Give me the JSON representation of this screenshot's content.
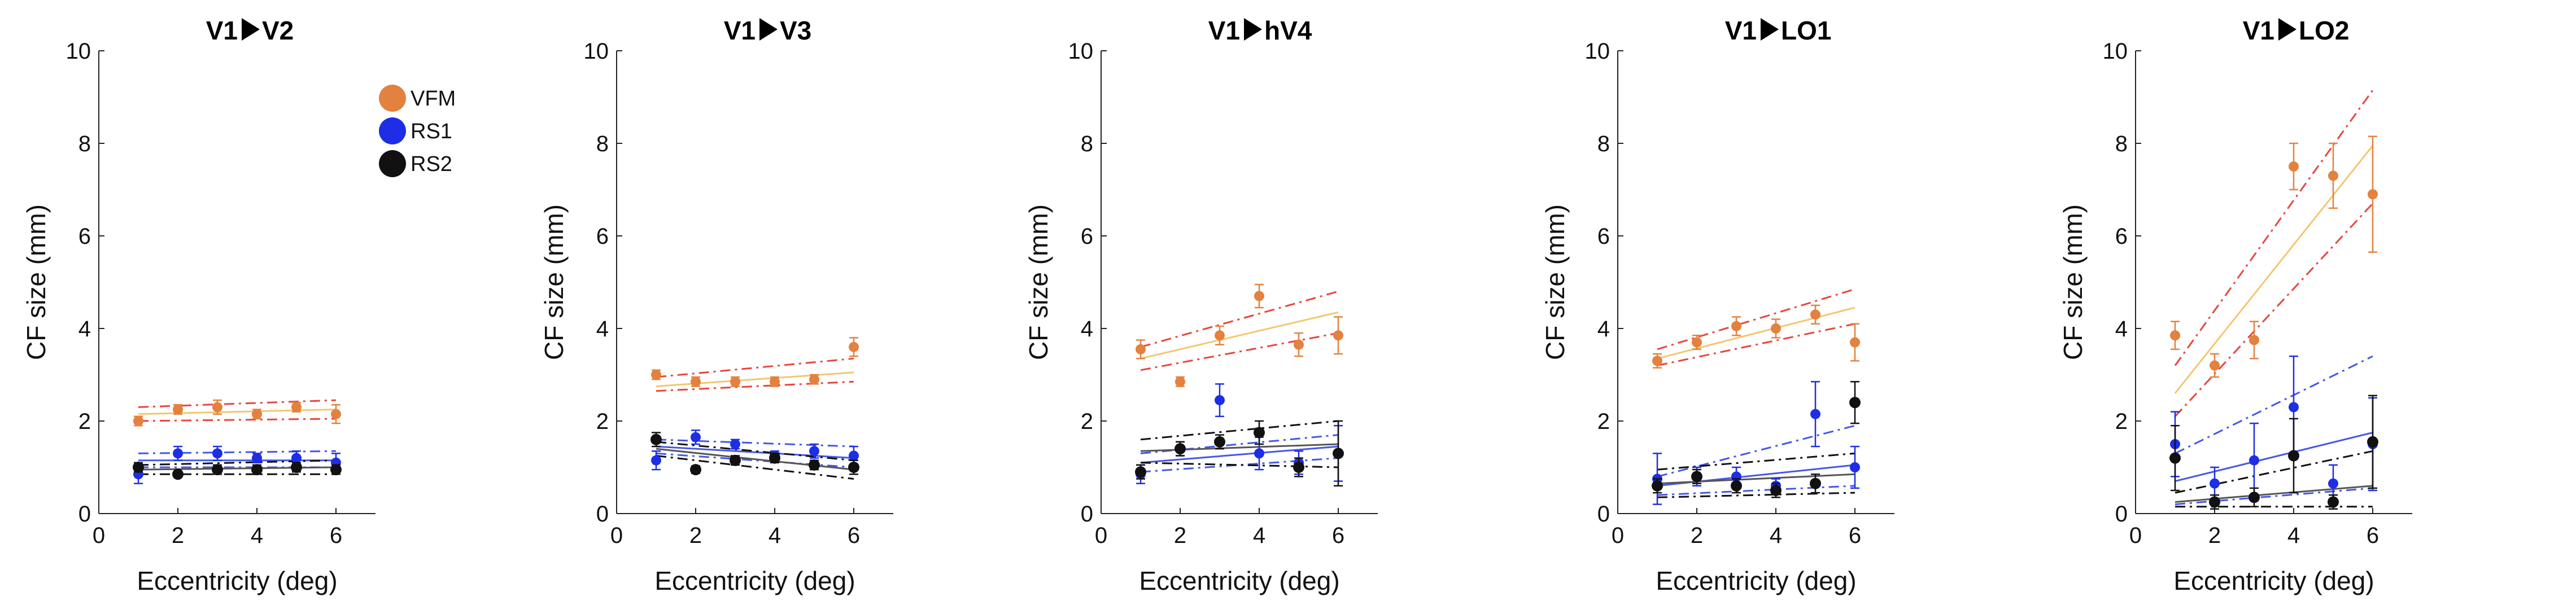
{
  "chart_data": {
    "type": "scatter",
    "colors": {
      "VFM": "#e3813f",
      "VFM_fit": "#f2c76f",
      "VFM_ci": "#e8453c",
      "RS1": "#1d2ee6",
      "RS1_fit": "#4557e8",
      "RS2": "#111111",
      "RS2_fit": "#555555"
    },
    "shared": {
      "xlabel": "Eccentricity (deg)",
      "ylabel": "CF size (mm)",
      "xlim": [
        0,
        7
      ],
      "ylim": [
        0,
        10
      ],
      "xticks": [
        0,
        2,
        4,
        6
      ],
      "yticks": [
        0,
        2,
        4,
        6,
        8,
        10
      ]
    },
    "legend": [
      "VFM",
      "RS1",
      "RS2"
    ],
    "panels": [
      {
        "title_left": "V1",
        "title_right": "V2",
        "x": [
          1,
          2,
          3,
          4,
          5,
          6
        ],
        "series": [
          {
            "name": "VFM",
            "values": [
              2.0,
              2.25,
              2.3,
              2.15,
              2.3,
              2.15
            ],
            "errors": [
              0.1,
              0.1,
              0.15,
              0.1,
              0.1,
              0.2
            ],
            "fit": [
              2.15,
              2.25
            ],
            "ci_low": [
              2.0,
              2.05
            ],
            "ci_high": [
              2.3,
              2.45
            ]
          },
          {
            "name": "RS1",
            "values": [
              0.85,
              1.3,
              1.3,
              1.2,
              1.2,
              1.1
            ],
            "errors": [
              0.2,
              0.15,
              0.15,
              0.1,
              0.15,
              0.2
            ],
            "fit": [
              1.15,
              1.15
            ],
            "ci_low": [
              1.0,
              1.0
            ],
            "ci_high": [
              1.3,
              1.35
            ]
          },
          {
            "name": "RS2",
            "values": [
              1.0,
              0.85,
              0.95,
              0.95,
              1.0,
              0.95
            ],
            "errors": [
              0.1,
              0.05,
              0.1,
              0.1,
              0.1,
              0.1
            ],
            "fit": [
              0.95,
              1.0
            ],
            "ci_low": [
              0.85,
              0.85
            ],
            "ci_high": [
              1.05,
              1.15
            ]
          }
        ]
      },
      {
        "title_left": "V1",
        "title_right": "V3",
        "x": [
          1,
          2,
          3,
          4,
          5,
          6
        ],
        "series": [
          {
            "name": "VFM",
            "values": [
              3.0,
              2.85,
              2.85,
              2.85,
              2.9,
              3.6
            ],
            "errors": [
              0.1,
              0.1,
              0.1,
              0.1,
              0.1,
              0.2
            ],
            "fit": [
              2.75,
              3.05
            ],
            "ci_low": [
              2.65,
              2.85
            ],
            "ci_high": [
              2.95,
              3.35
            ]
          },
          {
            "name": "RS1",
            "values": [
              1.15,
              1.65,
              1.5,
              1.25,
              1.35,
              1.25
            ],
            "errors": [
              0.2,
              0.15,
              0.1,
              0.1,
              0.15,
              0.2
            ],
            "fit": [
              1.45,
              1.2
            ],
            "ci_low": [
              1.3,
              1.0
            ],
            "ci_high": [
              1.6,
              1.45
            ]
          },
          {
            "name": "RS2",
            "values": [
              1.6,
              0.95,
              1.15,
              1.2,
              1.05,
              1.0
            ],
            "errors": [
              0.15,
              0.08,
              0.1,
              0.1,
              0.1,
              0.15
            ],
            "fit": [
              1.4,
              0.95
            ],
            "ci_low": [
              1.25,
              0.75
            ],
            "ci_high": [
              1.55,
              1.15
            ]
          }
        ]
      },
      {
        "title_left": "V1",
        "title_right": "hV4",
        "x": [
          1,
          2,
          3,
          4,
          5,
          6
        ],
        "series": [
          {
            "name": "VFM",
            "values": [
              3.55,
              2.85,
              3.85,
              4.7,
              3.65,
              3.85
            ],
            "errors": [
              0.2,
              0.1,
              0.2,
              0.25,
              0.25,
              0.4
            ],
            "fit": [
              3.35,
              4.35
            ],
            "ci_low": [
              3.1,
              3.9
            ],
            "ci_high": [
              3.6,
              4.8
            ]
          },
          {
            "name": "RS1",
            "values": [
              0.85,
              1.4,
              2.45,
              1.3,
              1.1,
              1.3
            ],
            "errors": [
              0.2,
              0.15,
              0.35,
              0.35,
              0.25,
              0.6
            ],
            "fit": [
              1.1,
              1.45
            ],
            "ci_low": [
              0.9,
              1.2
            ],
            "ci_high": [
              1.3,
              1.7
            ]
          },
          {
            "name": "RS2",
            "values": [
              0.9,
              1.4,
              1.55,
              1.75,
              1.0,
              1.3
            ],
            "errors": [
              0.15,
              0.15,
              0.15,
              0.25,
              0.2,
              0.7
            ],
            "fit": [
              1.35,
              1.5
            ],
            "ci_low": [
              1.1,
              1.0
            ],
            "ci_high": [
              1.6,
              2.0
            ]
          }
        ]
      },
      {
        "title_left": "V1",
        "title_right": "LO1",
        "x": [
          1,
          2,
          3,
          4,
          5,
          6
        ],
        "series": [
          {
            "name": "VFM",
            "values": [
              3.3,
              3.7,
              4.05,
              4.0,
              4.3,
              3.7
            ],
            "errors": [
              0.15,
              0.15,
              0.2,
              0.2,
              0.2,
              0.4
            ],
            "fit": [
              3.35,
              4.45
            ],
            "ci_low": [
              3.2,
              4.1
            ],
            "ci_high": [
              3.55,
              4.85
            ]
          },
          {
            "name": "RS1",
            "values": [
              0.75,
              0.8,
              0.8,
              0.6,
              2.15,
              1.0
            ],
            "errors": [
              0.55,
              0.2,
              0.2,
              0.15,
              0.7,
              0.45
            ],
            "fit": [
              0.6,
              1.05
            ],
            "ci_low": [
              0.4,
              0.6
            ],
            "ci_high": [
              0.8,
              1.9
            ]
          },
          {
            "name": "RS2",
            "values": [
              0.6,
              0.8,
              0.6,
              0.5,
              0.65,
              2.4
            ],
            "errors": [
              0.15,
              0.15,
              0.15,
              0.15,
              0.2,
              0.45
            ],
            "fit": [
              0.65,
              0.85
            ],
            "ci_low": [
              0.35,
              0.45
            ],
            "ci_high": [
              0.95,
              1.3
            ]
          }
        ]
      },
      {
        "title_left": "V1",
        "title_right": "LO2",
        "x": [
          1,
          2,
          3,
          4,
          5,
          6
        ],
        "series": [
          {
            "name": "VFM",
            "values": [
              3.85,
              3.2,
              3.75,
              7.5,
              7.3,
              6.9
            ],
            "errors": [
              0.3,
              0.25,
              0.4,
              0.5,
              0.7,
              1.25
            ],
            "fit": [
              2.6,
              7.95
            ],
            "ci_low": [
              2.1,
              6.7
            ],
            "ci_high": [
              3.2,
              9.15
            ]
          },
          {
            "name": "RS1",
            "values": [
              1.5,
              0.65,
              1.15,
              2.3,
              0.65,
              1.5
            ],
            "errors": [
              0.7,
              0.35,
              0.8,
              1.1,
              0.4,
              1.0
            ],
            "fit": [
              0.7,
              1.75
            ],
            "ci_low": [
              0.2,
              0.55
            ],
            "ci_high": [
              1.3,
              3.4
            ]
          },
          {
            "name": "RS2",
            "values": [
              1.2,
              0.25,
              0.35,
              1.25,
              0.25,
              1.55
            ],
            "errors": [
              0.7,
              0.15,
              0.2,
              0.8,
              0.15,
              1.0
            ],
            "fit": [
              0.25,
              0.6
            ],
            "ci_low": [
              0.15,
              0.15
            ],
            "ci_high": [
              0.45,
              1.35
            ]
          }
        ]
      }
    ]
  }
}
